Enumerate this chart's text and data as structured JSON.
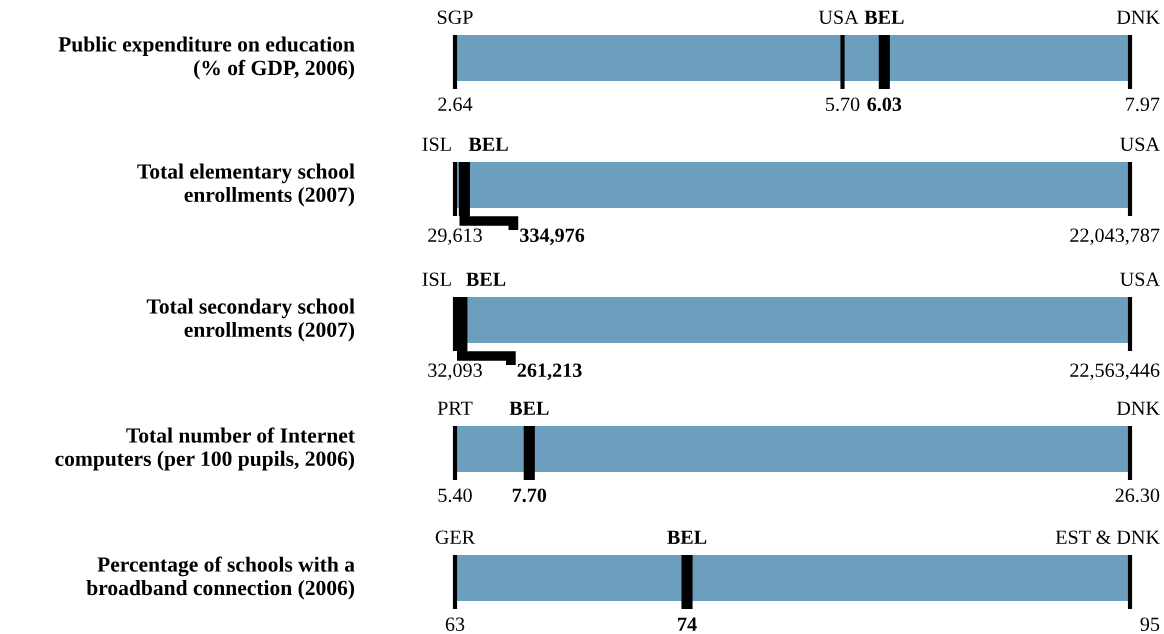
{
  "chart_data": [
    {
      "type": "other",
      "title": "Public expenditure on education\n(% of GDP, 2006)",
      "color": "#6c9fbe",
      "categories": [
        "SGP",
        "USA",
        null,
        "DNK"
      ],
      "values": [
        2.64,
        5.7,
        6.03,
        7.97
      ],
      "value_labels": [
        "2.64",
        "5.70",
        "6.03",
        "7.97"
      ],
      "annotations": [
        "BEL"
      ]
    },
    {
      "type": "other",
      "title": "Total elementary school\nenrollments (2007)",
      "color": "#6c9fbe",
      "categories": [
        "ISL",
        null,
        "USA"
      ],
      "values": [
        29613,
        334976,
        22043787
      ],
      "value_labels": [
        "29,613",
        "334,976",
        "22,043,787"
      ],
      "annotations": [
        "BEL"
      ]
    },
    {
      "type": "other",
      "title": "Total secondary school\nenrollments (2007)",
      "color": "#6c9fbe",
      "categories": [
        "ISL",
        null,
        "USA"
      ],
      "values": [
        32093,
        261213,
        22563446
      ],
      "value_labels": [
        "32,093",
        "261,213",
        "22,563,446"
      ],
      "annotations": [
        "BEL"
      ]
    },
    {
      "type": "other",
      "title": "Total number of Internet\ncomputers (per 100 pupils, 2006)",
      "color": "#6c9fbe",
      "categories": [
        "PRT",
        null,
        "DNK"
      ],
      "values": [
        5.4,
        7.7,
        26.3
      ],
      "value_labels": [
        "5.40",
        "7.70",
        "26.30"
      ],
      "annotations": [
        "BEL"
      ]
    },
    {
      "type": "other",
      "title": "Percentage of schools with a\nbroadband connection (2006)",
      "color": "#6c9fbe",
      "categories": [
        "GER",
        null,
        "EST & DNK"
      ],
      "values": [
        63,
        74,
        95
      ],
      "value_labels": [
        "63",
        "74",
        "95"
      ],
      "annotations": [
        "BEL"
      ]
    }
  ]
}
